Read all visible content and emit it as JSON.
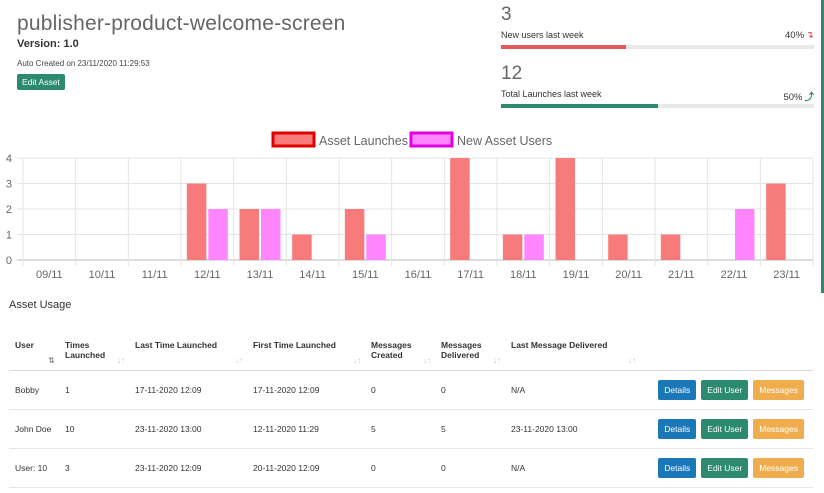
{
  "header": {
    "title": "publisher-product-welcome-screen",
    "version": "Version: 1.0",
    "auto_created": "Auto Created on 23/11/2020 11:29:53",
    "edit_button": "Edit Asset"
  },
  "stats": [
    {
      "value": "3",
      "label": "New users last week",
      "percent": "40%",
      "fraction": 0.4,
      "arrow": "↴",
      "color": "#e8575e"
    },
    {
      "value": "12",
      "label": "Total Launches last week",
      "percent": "50%",
      "fraction": 0.5,
      "arrow": "⤴",
      "color": "#2c8a6e"
    }
  ],
  "chart_data": {
    "type": "bar",
    "categories": [
      "09/11",
      "10/11",
      "11/11",
      "12/11",
      "13/11",
      "14/11",
      "15/11",
      "16/11",
      "17/11",
      "18/11",
      "19/11",
      "20/11",
      "21/11",
      "22/11",
      "23/11"
    ],
    "series": [
      {
        "name": "Asset Launches",
        "color": "#f87b7b",
        "border": "#e00000",
        "values": [
          0,
          0,
          0,
          3,
          2,
          1,
          2,
          0,
          4,
          1,
          4,
          1,
          1,
          0,
          3
        ]
      },
      {
        "name": "New Asset Users",
        "color": "#ff86ff",
        "border": "#e000e0",
        "values": [
          0,
          0,
          0,
          2,
          2,
          0,
          1,
          0,
          0,
          1,
          0,
          0,
          0,
          2,
          0
        ]
      }
    ],
    "ylim": [
      0,
      4
    ],
    "yticks": [
      0,
      1,
      2,
      3,
      4
    ],
    "grid": true,
    "legend": "top-center"
  },
  "usage": {
    "title": "Asset Usage",
    "columns": [
      "User",
      "Times Launched",
      "Last Time Launched",
      "First Time Launched",
      "Messages Created",
      "Messages Delivered",
      "Last Message Delivered"
    ],
    "rows": [
      [
        "Bobby",
        "1",
        "17-11-2020 12:09",
        "17-11-2020 12:09",
        "0",
        "0",
        "N/A"
      ],
      [
        "John Doe",
        "10",
        "23-11-2020 13:00",
        "12-11-2020 11:29",
        "5",
        "5",
        "23-11-2020 13:00"
      ],
      [
        "User: 10",
        "3",
        "23-11-2020 12:09",
        "20-11-2020 12:09",
        "0",
        "0",
        "N/A"
      ]
    ],
    "buttons": {
      "details": "Details",
      "edit_user": "Edit User",
      "messages": "Messages"
    }
  }
}
